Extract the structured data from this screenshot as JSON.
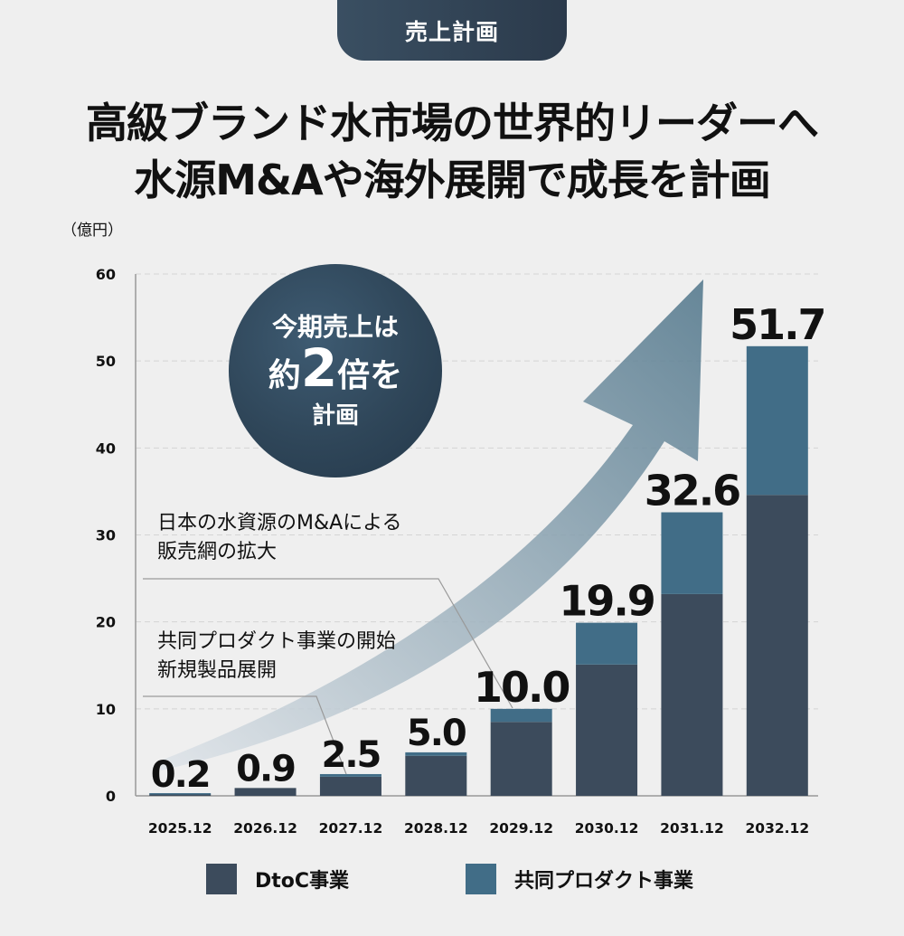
{
  "badge": "売上計画",
  "title": {
    "line1": "高級ブランド水市場の世界的リーダーへ",
    "line2": "水源M&Aや海外展開で成長を計画"
  },
  "circle": {
    "line1": "今期売上は",
    "pre": "約",
    "big": "2",
    "post": "倍を",
    "line3": "計画"
  },
  "notes": {
    "ma": [
      "日本の水資源のM&Aによる",
      "販売網の拡大"
    ],
    "joint": [
      "共同プロダクト事業の開始",
      "新規製品展開"
    ]
  },
  "colors": {
    "dtoc": "#3c4b5c",
    "joint": "#416d87",
    "arrow_start": "#dfe4e9",
    "arrow_end": "#4e7489"
  },
  "chart_data": {
    "type": "bar",
    "stacked": true,
    "unit_label": "（億円）",
    "categories": [
      "2025.12",
      "2026.12",
      "2027.12",
      "2028.12",
      "2029.12",
      "2030.12",
      "2031.12",
      "2032.12"
    ],
    "totals": [
      "0.2",
      "0.9",
      "2.5",
      "5.0",
      "10.0",
      "19.9",
      "32.6",
      "51.7"
    ],
    "series": [
      {
        "name": "DtoC事業",
        "values": [
          0.15,
          0.9,
          2.2,
          4.6,
          8.5,
          15.1,
          23.2,
          34.6
        ]
      },
      {
        "name": "共同プロダクト事業",
        "values": [
          0.05,
          0.0,
          0.3,
          0.4,
          1.5,
          4.8,
          9.4,
          17.1
        ]
      }
    ],
    "yticks": [
      "0",
      "10",
      "20",
      "30",
      "40",
      "50",
      "60"
    ],
    "ylim": [
      0,
      60
    ],
    "grid": true,
    "legend": "bottom"
  }
}
